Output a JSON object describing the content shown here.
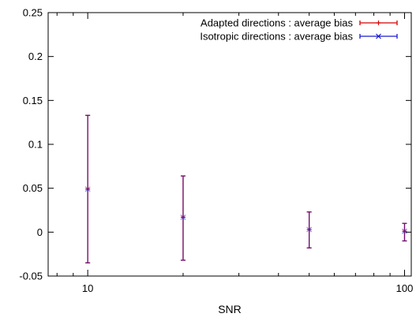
{
  "chart_data": {
    "type": "scatter",
    "title": "",
    "xlabel": "SNR",
    "ylabel": "",
    "xscale": "log",
    "xlim": [
      7.5,
      105
    ],
    "ylim": [
      -0.05,
      0.25
    ],
    "xticks": [
      {
        "value": 10,
        "label": "10"
      },
      {
        "value": 100,
        "label": "100"
      }
    ],
    "yticks": [
      {
        "value": -0.05,
        "label": "-0.05"
      },
      {
        "value": 0,
        "label": "0"
      },
      {
        "value": 0.05,
        "label": "0.05"
      },
      {
        "value": 0.1,
        "label": "0.1"
      },
      {
        "value": 0.15,
        "label": "0.15"
      },
      {
        "value": 0.2,
        "label": "0.2"
      },
      {
        "value": 0.25,
        "label": "0.25"
      }
    ],
    "grid": false,
    "legend_position": "top-right",
    "series": [
      {
        "name": "Adapted directions : average bias",
        "color": "#d40000",
        "marker": "plus",
        "points": [
          {
            "x": 10,
            "y": 0.049,
            "ylow": -0.035,
            "yhigh": 0.133
          },
          {
            "x": 20,
            "y": 0.017,
            "ylow": -0.032,
            "yhigh": 0.064
          },
          {
            "x": 50,
            "y": 0.003,
            "ylow": -0.018,
            "yhigh": 0.023
          },
          {
            "x": 100,
            "y": 0.001,
            "ylow": -0.01,
            "yhigh": 0.01
          }
        ]
      },
      {
        "name": "Isotropic directions : average bias",
        "color": "#1a1acc",
        "marker": "cross",
        "points": [
          {
            "x": 10,
            "y": 0.049,
            "ylow": -0.035,
            "yhigh": 0.133
          },
          {
            "x": 20,
            "y": 0.017,
            "ylow": -0.032,
            "yhigh": 0.064
          },
          {
            "x": 50,
            "y": 0.003,
            "ylow": -0.018,
            "yhigh": 0.023
          },
          {
            "x": 100,
            "y": 0.001,
            "ylow": -0.01,
            "yhigh": 0.01
          }
        ]
      }
    ]
  }
}
